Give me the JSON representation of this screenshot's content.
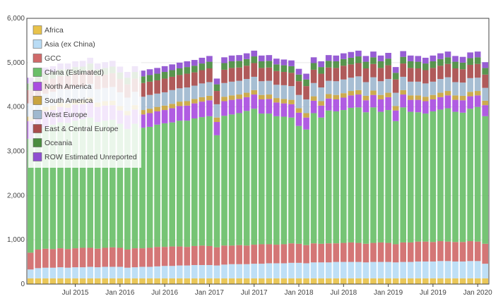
{
  "chart_data": {
    "type": "bar",
    "stacked": true,
    "title": "",
    "xlabel": "",
    "ylabel": "",
    "ylim": [
      0,
      6000
    ],
    "y_ticks": [
      0,
      1000,
      2000,
      3000,
      4000,
      5000,
      6000
    ],
    "y_tick_labels": [
      "0",
      "1,000",
      "2,000",
      "3,000",
      "4,000",
      "5,000",
      "6,000"
    ],
    "x_tick_labels": [
      "Jul 2015",
      "Jan 2016",
      "Jul 2016",
      "Jan 2017",
      "Jul 2017",
      "Jan 2018",
      "Jul 2018",
      "Jan 2019",
      "Jul 2019",
      "Jan 2020"
    ],
    "x_tick_positions": [
      6,
      12,
      18,
      24,
      30,
      36,
      42,
      48,
      54,
      60
    ],
    "grid": true,
    "legend_position": "top-left",
    "categories": [
      "2015-01",
      "2015-02",
      "2015-03",
      "2015-04",
      "2015-05",
      "2015-06",
      "2015-07",
      "2015-08",
      "2015-09",
      "2015-10",
      "2015-11",
      "2015-12",
      "2016-01",
      "2016-02",
      "2016-03",
      "2016-04",
      "2016-05",
      "2016-06",
      "2016-07",
      "2016-08",
      "2016-09",
      "2016-10",
      "2016-11",
      "2016-12",
      "2017-01",
      "2017-02",
      "2017-03",
      "2017-04",
      "2017-05",
      "2017-06",
      "2017-07",
      "2017-08",
      "2017-09",
      "2017-10",
      "2017-11",
      "2017-12",
      "2018-01",
      "2018-02",
      "2018-03",
      "2018-04",
      "2018-05",
      "2018-06",
      "2018-07",
      "2018-08",
      "2018-09",
      "2018-10",
      "2018-11",
      "2018-12",
      "2019-01",
      "2019-02",
      "2019-03",
      "2019-04",
      "2019-05",
      "2019-06",
      "2019-07",
      "2019-08",
      "2019-09",
      "2019-10",
      "2019-11",
      "2019-12",
      "2020-01",
      "2020-02"
    ],
    "series": [
      {
        "name": "Africa",
        "color": "#e8c24a",
        "values": [
          130,
          130,
          130,
          130,
          130,
          130,
          130,
          130,
          130,
          130,
          130,
          130,
          130,
          130,
          130,
          130,
          130,
          130,
          130,
          130,
          130,
          130,
          130,
          130,
          130,
          130,
          130,
          130,
          130,
          130,
          130,
          130,
          130,
          130,
          130,
          130,
          130,
          130,
          130,
          130,
          130,
          130,
          130,
          130,
          130,
          130,
          130,
          130,
          130,
          130,
          130,
          130,
          130,
          130,
          130,
          130,
          130,
          130,
          130,
          130,
          130,
          130
        ]
      },
      {
        "name": "Asia (ex China)",
        "color": "#b9dcf5",
        "values": [
          200,
          230,
          240,
          240,
          250,
          240,
          250,
          250,
          260,
          250,
          260,
          260,
          260,
          240,
          250,
          260,
          260,
          270,
          280,
          280,
          290,
          290,
          300,
          300,
          300,
          290,
          310,
          320,
          320,
          320,
          330,
          330,
          340,
          340,
          340,
          350,
          350,
          340,
          360,
          360,
          360,
          370,
          370,
          370,
          370,
          360,
          370,
          370,
          370,
          360,
          370,
          370,
          380,
          380,
          380,
          390,
          390,
          380,
          380,
          390,
          390,
          330
        ]
      },
      {
        "name": "GCC",
        "color": "#d06a6a",
        "values": [
          380,
          420,
          430,
          420,
          430,
          420,
          430,
          440,
          430,
          420,
          430,
          440,
          430,
          410,
          430,
          420,
          430,
          440,
          430,
          440,
          430,
          420,
          430,
          440,
          430,
          410,
          430,
          420,
          430,
          420,
          430,
          440,
          430,
          420,
          430,
          440,
          430,
          410,
          430,
          420,
          430,
          420,
          430,
          440,
          430,
          420,
          430,
          440,
          430,
          410,
          440,
          440,
          450,
          450,
          440,
          450,
          440,
          440,
          440,
          450,
          440,
          450
        ]
      },
      {
        "name": "China (Estimated)",
        "color": "#6abf69",
        "values": [
          2570,
          2670,
          2730,
          2810,
          2840,
          2850,
          2880,
          2900,
          2940,
          2860,
          2870,
          2880,
          2800,
          2720,
          2810,
          2720,
          2730,
          2760,
          2790,
          2800,
          2840,
          2850,
          2880,
          2900,
          2930,
          2530,
          2930,
          2960,
          2980,
          3040,
          3070,
          2950,
          2950,
          2900,
          2880,
          2840,
          2660,
          2610,
          2940,
          2850,
          3000,
          2980,
          3000,
          3040,
          3060,
          2970,
          3060,
          2950,
          3000,
          2780,
          3050,
          2950,
          2920,
          2890,
          2950,
          2970,
          3010,
          2940,
          2920,
          2990,
          3040,
          2880
        ]
      },
      {
        "name": "North America",
        "color": "#a94ee0",
        "values": [
          400,
          360,
          370,
          330,
          350,
          340,
          360,
          340,
          350,
          340,
          340,
          330,
          300,
          310,
          320,
          300,
          310,
          300,
          300,
          320,
          330,
          340,
          340,
          350,
          360,
          300,
          330,
          330,
          320,
          310,
          320,
          320,
          330,
          310,
          300,
          300,
          300,
          270,
          280,
          270,
          270,
          270,
          280,
          280,
          290,
          270,
          280,
          280,
          290,
          240,
          290,
          270,
          280,
          280,
          270,
          280,
          290,
          270,
          280,
          280,
          260,
          250
        ]
      },
      {
        "name": "South America",
        "color": "#c9a43f",
        "values": [
          100,
          100,
          100,
          100,
          100,
          100,
          100,
          100,
          100,
          100,
          100,
          100,
          100,
          100,
          100,
          100,
          100,
          100,
          100,
          100,
          100,
          100,
          100,
          100,
          100,
          100,
          100,
          100,
          100,
          100,
          100,
          100,
          100,
          100,
          100,
          100,
          100,
          100,
          100,
          100,
          100,
          100,
          100,
          100,
          100,
          100,
          100,
          100,
          100,
          100,
          100,
          100,
          100,
          100,
          100,
          100,
          100,
          100,
          100,
          100,
          100,
          100
        ]
      },
      {
        "name": "West Europe",
        "color": "#9fb8cf",
        "values": [
          300,
          310,
          300,
          310,
          300,
          310,
          300,
          300,
          310,
          300,
          300,
          310,
          310,
          300,
          300,
          300,
          310,
          300,
          300,
          310,
          300,
          310,
          300,
          310,
          310,
          300,
          310,
          310,
          310,
          310,
          300,
          310,
          310,
          300,
          310,
          310,
          300,
          310,
          300,
          310,
          300,
          310,
          310,
          300,
          310,
          310,
          300,
          310,
          310,
          300,
          300,
          310,
          310,
          300,
          300,
          310,
          310,
          300,
          300,
          310,
          300,
          290
        ]
      },
      {
        "name": "East & Central Europe",
        "color": "#a94c4c",
        "values": [
          300,
          300,
          310,
          300,
          300,
          310,
          300,
          300,
          310,
          300,
          300,
          310,
          300,
          300,
          300,
          310,
          300,
          300,
          310,
          300,
          300,
          310,
          300,
          300,
          310,
          300,
          300,
          310,
          300,
          300,
          310,
          300,
          300,
          310,
          300,
          300,
          310,
          300,
          300,
          310,
          300,
          300,
          310,
          300,
          300,
          310,
          300,
          300,
          310,
          300,
          300,
          310,
          300,
          300,
          310,
          300,
          300,
          310,
          300,
          300,
          310,
          300
        ]
      },
      {
        "name": "Oceania",
        "color": "#4a8c3f",
        "values": [
          150,
          150,
          150,
          150,
          150,
          150,
          150,
          150,
          150,
          150,
          150,
          150,
          150,
          150,
          150,
          150,
          150,
          150,
          150,
          150,
          150,
          150,
          150,
          150,
          150,
          150,
          150,
          150,
          150,
          150,
          150,
          150,
          150,
          150,
          150,
          150,
          150,
          150,
          150,
          150,
          150,
          150,
          150,
          150,
          150,
          150,
          150,
          150,
          150,
          150,
          150,
          150,
          150,
          150,
          150,
          150,
          150,
          150,
          150,
          150,
          150,
          150
        ]
      },
      {
        "name": "ROW Estimated Unreported",
        "color": "#8e4fd0",
        "values": [
          130,
          130,
          130,
          130,
          130,
          130,
          130,
          130,
          130,
          130,
          130,
          130,
          130,
          130,
          130,
          130,
          130,
          130,
          130,
          130,
          130,
          130,
          130,
          130,
          130,
          130,
          130,
          130,
          130,
          130,
          130,
          130,
          130,
          130,
          130,
          130,
          130,
          130,
          130,
          130,
          130,
          130,
          130,
          130,
          130,
          130,
          130,
          130,
          130,
          130,
          130,
          130,
          130,
          130,
          130,
          130,
          130,
          130,
          130,
          130,
          130,
          130
        ]
      }
    ]
  }
}
